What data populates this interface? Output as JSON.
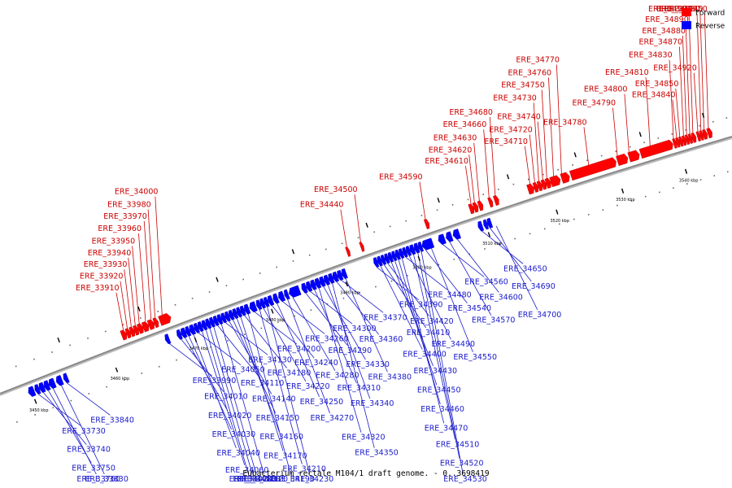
{
  "caption": "Eubacterium rectale M104/1 draft genome. - 0..3698419",
  "legend": [
    {
      "label": "Forward",
      "color": "#ff0000"
    },
    {
      "label": "Reverse",
      "color": "#0000ff"
    }
  ],
  "colors": {
    "forward": "#ff0000",
    "forward_label": "#cc0000",
    "reverse": "#0000ff",
    "reverse_label": "#1a1acc",
    "axis": "#888888"
  },
  "axis_kbp": [
    3450,
    3460,
    3470,
    3480,
    3490,
    3500,
    3510,
    3520,
    3530,
    3540
  ],
  "forward_genes": [
    {
      "name": "ERE_33910",
      "kbp": 3462.4
    },
    {
      "name": "ERE_33920",
      "kbp": 3462.9
    },
    {
      "name": "ERE_33930",
      "kbp": 3463.4
    },
    {
      "name": "ERE_33940",
      "kbp": 3463.9
    },
    {
      "name": "ERE_33950",
      "kbp": 3464.4
    },
    {
      "name": "ERE_33960",
      "kbp": 3465.2
    },
    {
      "name": "ERE_33970",
      "kbp": 3465.9
    },
    {
      "name": "ERE_33980",
      "kbp": 3466.4
    },
    {
      "name": "ERE_34000",
      "kbp": 3467.3
    },
    {
      "name": "ERE_34440",
      "kbp": 3491.6
    },
    {
      "name": "ERE_34500",
      "kbp": 3493.5
    },
    {
      "name": "ERE_34590",
      "kbp": 3502.5
    },
    {
      "name": "ERE_34610",
      "kbp": 3509.0
    },
    {
      "name": "ERE_34620",
      "kbp": 3509.5
    },
    {
      "name": "ERE_34630",
      "kbp": 3510.2
    },
    {
      "name": "ERE_34660",
      "kbp": 3511.6
    },
    {
      "name": "ERE_34680",
      "kbp": 3512.5
    },
    {
      "name": "ERE_34710",
      "kbp": 3517.6
    },
    {
      "name": "ERE_34720",
      "kbp": 3518.3
    },
    {
      "name": "ERE_34730",
      "kbp": 3518.9
    },
    {
      "name": "ERE_34740",
      "kbp": 3519.5
    },
    {
      "name": "ERE_34750",
      "kbp": 3520.1
    },
    {
      "name": "ERE_34760",
      "kbp": 3521.1
    },
    {
      "name": "ERE_34770",
      "kbp": 3522.3
    },
    {
      "name": "ERE_34780",
      "kbp": 3526.4
    },
    {
      "name": "ERE_34790",
      "kbp": 3530.8
    },
    {
      "name": "ERE_34800",
      "kbp": 3532.6
    },
    {
      "name": "ERE_34810",
      "kbp": 3535.9
    },
    {
      "name": "ERE_34830",
      "kbp": 3539.6
    },
    {
      "name": "ERE_34840",
      "kbp": 3540.1
    },
    {
      "name": "ERE_34850",
      "kbp": 3540.6
    },
    {
      "name": "ERE_34870",
      "kbp": 3541.2
    },
    {
      "name": "ERE_34880",
      "kbp": 3541.7
    },
    {
      "name": "ERE_34890",
      "kbp": 3542.2
    },
    {
      "name": "ERE_34900",
      "kbp": 3542.7
    },
    {
      "name": "ERE_34920",
      "kbp": 3543.5
    },
    {
      "name": "ERE_34930",
      "kbp": 3544.0
    },
    {
      "name": "ERE_34940",
      "kbp": 3544.5
    },
    {
      "name": "ERE_34950",
      "kbp": 3545.2
    }
  ],
  "reverse_genes": [
    {
      "name": "ERE_33730",
      "kbp": 3450.6
    },
    {
      "name": "ERE_33740",
      "kbp": 3451.2
    },
    {
      "name": "ERE_33750",
      "kbp": 3451.8
    },
    {
      "name": "ERE_33760",
      "kbp": 3452.4
    },
    {
      "name": "ERE_33830",
      "kbp": 3453.4
    },
    {
      "name": "ERE_33840",
      "kbp": 3454.1
    },
    {
      "name": "ERE_33990",
      "kbp": 3466.9
    },
    {
      "name": "ERE_34010",
      "kbp": 3468.4
    },
    {
      "name": "ERE_34020",
      "kbp": 3468.9
    },
    {
      "name": "ERE_34030",
      "kbp": 3469.4
    },
    {
      "name": "ERE_34040",
      "kbp": 3470.0
    },
    {
      "name": "ERE_34050",
      "kbp": 3470.6
    },
    {
      "name": "ERE_34060",
      "kbp": 3471.1
    },
    {
      "name": "ERE_34070",
      "kbp": 3471.6
    },
    {
      "name": "ERE_34080",
      "kbp": 3472.1
    },
    {
      "name": "ERE_34100",
      "kbp": 3472.6
    },
    {
      "name": "ERE_34110",
      "kbp": 3473.1
    },
    {
      "name": "ERE_34120",
      "kbp": 3473.6
    },
    {
      "name": "ERE_34130",
      "kbp": 3474.1
    },
    {
      "name": "ERE_34140",
      "kbp": 3474.6
    },
    {
      "name": "ERE_34150",
      "kbp": 3475.1
    },
    {
      "name": "ERE_34160",
      "kbp": 3475.6
    },
    {
      "name": "ERE_34170",
      "kbp": 3476.1
    },
    {
      "name": "ERE_34180",
      "kbp": 3476.6
    },
    {
      "name": "ERE_34190",
      "kbp": 3477.1
    },
    {
      "name": "ERE_34200",
      "kbp": 3477.9
    },
    {
      "name": "ERE_34210",
      "kbp": 3478.6
    },
    {
      "name": "ERE_34220",
      "kbp": 3479.1
    },
    {
      "name": "ERE_34230",
      "kbp": 3479.6
    },
    {
      "name": "ERE_34240",
      "kbp": 3480.2
    },
    {
      "name": "ERE_34250",
      "kbp": 3480.9
    },
    {
      "name": "ERE_34260",
      "kbp": 3481.6
    },
    {
      "name": "ERE_34270",
      "kbp": 3482.3
    },
    {
      "name": "ERE_34280",
      "kbp": 3483.0
    },
    {
      "name": "ERE_34290",
      "kbp": 3484.7
    },
    {
      "name": "ERE_34300",
      "kbp": 3485.3
    },
    {
      "name": "ERE_34310",
      "kbp": 3485.9
    },
    {
      "name": "ERE_34320",
      "kbp": 3486.5
    },
    {
      "name": "ERE_34330",
      "kbp": 3487.1
    },
    {
      "name": "ERE_34340",
      "kbp": 3487.7
    },
    {
      "name": "ERE_34350",
      "kbp": 3488.3
    },
    {
      "name": "ERE_34360",
      "kbp": 3488.9
    },
    {
      "name": "ERE_34370",
      "kbp": 3489.5
    },
    {
      "name": "ERE_34380",
      "kbp": 3490.1
    },
    {
      "name": "ERE_34390",
      "kbp": 3494.4
    },
    {
      "name": "ERE_34400",
      "kbp": 3494.9
    },
    {
      "name": "ERE_34410",
      "kbp": 3495.4
    },
    {
      "name": "ERE_34420",
      "kbp": 3495.9
    },
    {
      "name": "ERE_34430",
      "kbp": 3496.4
    },
    {
      "name": "ERE_34450",
      "kbp": 3496.9
    },
    {
      "name": "ERE_34460",
      "kbp": 3497.4
    },
    {
      "name": "ERE_34470",
      "kbp": 3497.9
    },
    {
      "name": "ERE_34480",
      "kbp": 3498.4
    },
    {
      "name": "ERE_34490",
      "kbp": 3498.9
    },
    {
      "name": "ERE_34510",
      "kbp": 3499.5
    },
    {
      "name": "ERE_34520",
      "kbp": 3500.1
    },
    {
      "name": "ERE_34530",
      "kbp": 3500.6
    },
    {
      "name": "ERE_34540",
      "kbp": 3501.2
    },
    {
      "name": "ERE_34550",
      "kbp": 3502.0
    },
    {
      "name": "ERE_34560",
      "kbp": 3503.6
    },
    {
      "name": "ERE_34570",
      "kbp": 3504.6
    },
    {
      "name": "ERE_34600",
      "kbp": 3505.7
    },
    {
      "name": "ERE_34650",
      "kbp": 3509.2
    },
    {
      "name": "ERE_34690",
      "kbp": 3510.4
    },
    {
      "name": "ERE_34700",
      "kbp": 3511.3
    }
  ],
  "forward_glyphs": [
    {
      "s": 3462.0,
      "e": 3462.6
    },
    {
      "s": 3462.6,
      "e": 3463.1
    },
    {
      "s": 3463.1,
      "e": 3463.6
    },
    {
      "s": 3463.6,
      "e": 3464.1
    },
    {
      "s": 3464.1,
      "e": 3464.7
    },
    {
      "s": 3464.7,
      "e": 3465.4
    },
    {
      "s": 3465.4,
      "e": 3466.1
    },
    {
      "s": 3466.1,
      "e": 3466.6
    },
    {
      "s": 3466.8,
      "e": 3468.2
    },
    {
      "s": 3491.4,
      "e": 3491.8
    },
    {
      "s": 3493.3,
      "e": 3493.7
    },
    {
      "s": 3502.3,
      "e": 3502.8
    },
    {
      "s": 3508.6,
      "e": 3509.2
    },
    {
      "s": 3509.2,
      "e": 3509.8
    },
    {
      "s": 3509.9,
      "e": 3510.5
    },
    {
      "s": 3511.4,
      "e": 3511.9
    },
    {
      "s": 3512.2,
      "e": 3512.8
    },
    {
      "s": 3517.1,
      "e": 3518.0
    },
    {
      "s": 3518.0,
      "e": 3518.6
    },
    {
      "s": 3518.6,
      "e": 3519.2
    },
    {
      "s": 3519.2,
      "e": 3519.8
    },
    {
      "s": 3519.8,
      "e": 3520.5
    },
    {
      "s": 3520.5,
      "e": 3521.9
    },
    {
      "s": 3522.1,
      "e": 3523.3
    },
    {
      "s": 3523.5,
      "e": 3530.4
    },
    {
      "s": 3530.6,
      "e": 3532.2
    },
    {
      "s": 3532.4,
      "e": 3534.0
    },
    {
      "s": 3534.2,
      "e": 3539.3
    },
    {
      "s": 3539.4,
      "e": 3539.9
    },
    {
      "s": 3539.9,
      "e": 3540.4
    },
    {
      "s": 3540.4,
      "e": 3540.9
    },
    {
      "s": 3540.9,
      "e": 3541.4
    },
    {
      "s": 3541.4,
      "e": 3541.9
    },
    {
      "s": 3541.9,
      "e": 3542.4
    },
    {
      "s": 3542.4,
      "e": 3543.0
    },
    {
      "s": 3543.2,
      "e": 3543.7
    },
    {
      "s": 3543.7,
      "e": 3544.2
    },
    {
      "s": 3544.2,
      "e": 3544.8
    },
    {
      "s": 3544.9,
      "e": 3545.6
    }
  ],
  "reverse_glyphs": [
    {
      "s": 3449.6,
      "e": 3450.3
    },
    {
      "s": 3450.4,
      "e": 3450.9
    },
    {
      "s": 3450.9,
      "e": 3451.5
    },
    {
      "s": 3451.5,
      "e": 3452.1
    },
    {
      "s": 3452.1,
      "e": 3452.8
    },
    {
      "s": 3453.0,
      "e": 3453.7
    },
    {
      "s": 3453.9,
      "e": 3454.4
    },
    {
      "s": 3466.6,
      "e": 3467.1
    },
    {
      "s": 3468.1,
      "e": 3468.6
    },
    {
      "s": 3468.6,
      "e": 3469.2
    },
    {
      "s": 3469.2,
      "e": 3469.7
    },
    {
      "s": 3469.7,
      "e": 3470.3
    },
    {
      "s": 3470.3,
      "e": 3470.8
    },
    {
      "s": 3470.8,
      "e": 3471.3
    },
    {
      "s": 3471.3,
      "e": 3471.8
    },
    {
      "s": 3471.8,
      "e": 3472.3
    },
    {
      "s": 3472.3,
      "e": 3472.8
    },
    {
      "s": 3472.8,
      "e": 3473.3
    },
    {
      "s": 3473.3,
      "e": 3473.8
    },
    {
      "s": 3473.8,
      "e": 3474.3
    },
    {
      "s": 3474.3,
      "e": 3474.8
    },
    {
      "s": 3474.8,
      "e": 3475.3
    },
    {
      "s": 3475.3,
      "e": 3475.8
    },
    {
      "s": 3475.8,
      "e": 3476.3
    },
    {
      "s": 3476.3,
      "e": 3476.8
    },
    {
      "s": 3476.8,
      "e": 3477.4
    },
    {
      "s": 3477.5,
      "e": 3478.3
    },
    {
      "s": 3478.4,
      "e": 3478.9
    },
    {
      "s": 3478.9,
      "e": 3479.4
    },
    {
      "s": 3479.4,
      "e": 3479.9
    },
    {
      "s": 3479.9,
      "e": 3480.5
    },
    {
      "s": 3480.6,
      "e": 3481.2
    },
    {
      "s": 3481.3,
      "e": 3482.0
    },
    {
      "s": 3482.1,
      "e": 3482.6
    },
    {
      "s": 3482.7,
      "e": 3484.1
    },
    {
      "s": 3484.4,
      "e": 3485.0
    },
    {
      "s": 3485.0,
      "e": 3485.6
    },
    {
      "s": 3485.6,
      "e": 3486.2
    },
    {
      "s": 3486.2,
      "e": 3486.8
    },
    {
      "s": 3486.8,
      "e": 3487.4
    },
    {
      "s": 3487.4,
      "e": 3488.0
    },
    {
      "s": 3488.0,
      "e": 3488.6
    },
    {
      "s": 3488.6,
      "e": 3489.2
    },
    {
      "s": 3489.2,
      "e": 3489.8
    },
    {
      "s": 3489.8,
      "e": 3490.4
    },
    {
      "s": 3494.2,
      "e": 3494.7
    },
    {
      "s": 3494.7,
      "e": 3495.2
    },
    {
      "s": 3495.2,
      "e": 3495.7
    },
    {
      "s": 3495.7,
      "e": 3496.2
    },
    {
      "s": 3496.2,
      "e": 3496.7
    },
    {
      "s": 3496.7,
      "e": 3497.2
    },
    {
      "s": 3497.2,
      "e": 3497.7
    },
    {
      "s": 3497.7,
      "e": 3498.2
    },
    {
      "s": 3498.2,
      "e": 3498.7
    },
    {
      "s": 3498.7,
      "e": 3499.2
    },
    {
      "s": 3499.2,
      "e": 3499.8
    },
    {
      "s": 3499.8,
      "e": 3500.4
    },
    {
      "s": 3500.4,
      "e": 3500.9
    },
    {
      "s": 3500.9,
      "e": 3502.4
    },
    {
      "s": 3503.2,
      "e": 3504.1
    },
    {
      "s": 3504.3,
      "e": 3505.1
    },
    {
      "s": 3505.3,
      "e": 3506.2
    },
    {
      "s": 3508.9,
      "e": 3509.5
    },
    {
      "s": 3509.7,
      "e": 3510.2
    },
    {
      "s": 3510.2,
      "e": 3510.8
    }
  ]
}
